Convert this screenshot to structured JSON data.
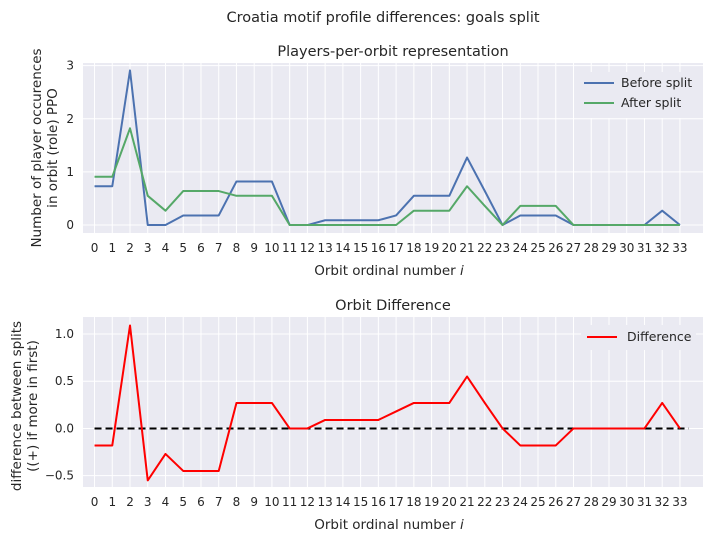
{
  "suptitle": "Croatia motif profile differences: goals split",
  "colors": {
    "before": "#4c72b0",
    "after": "#55a868",
    "difference": "#ff0000",
    "zero_line": "#000000",
    "axes_bg": "#eaeaf2",
    "grid": "#ffffff"
  },
  "chart_data": [
    {
      "type": "line",
      "title": "Players-per-orbit representation",
      "xlabel": "Orbit ordinal number i",
      "ylabel_line1": "Number of player occurences",
      "ylabel_line2": "in orbit (role) PPO",
      "x": [
        0,
        1,
        2,
        3,
        4,
        5,
        6,
        7,
        8,
        9,
        10,
        11,
        12,
        13,
        14,
        15,
        16,
        17,
        18,
        19,
        20,
        21,
        22,
        23,
        24,
        25,
        26,
        27,
        28,
        29,
        30,
        31,
        32,
        33
      ],
      "xticks": [
        "0",
        "1",
        "2",
        "3",
        "4",
        "5",
        "6",
        "7",
        "8",
        "9",
        "10",
        "11",
        "12",
        "13",
        "14",
        "15",
        "16",
        "17",
        "18",
        "19",
        "20",
        "21",
        "22",
        "23",
        "24",
        "25",
        "26",
        "27",
        "28",
        "29",
        "30",
        "31",
        "32",
        "33"
      ],
      "yticks": [
        "0",
        "1",
        "2",
        "3"
      ],
      "ylim": [
        -0.15,
        3.05
      ],
      "xlim": [
        -0.65,
        34.3
      ],
      "grid": true,
      "legend_position": "upper right",
      "series": [
        {
          "name": "Before split",
          "values": [
            0.73,
            0.73,
            2.91,
            0,
            0,
            0.18,
            0.18,
            0.18,
            0.82,
            0.82,
            0.82,
            0,
            0,
            0.09,
            0.09,
            0.09,
            0.09,
            0.18,
            0.55,
            0.55,
            0.55,
            1.27,
            0.64,
            0,
            0.18,
            0.18,
            0.18,
            0,
            0,
            0,
            0,
            0,
            0.27,
            0
          ]
        },
        {
          "name": "After split",
          "values": [
            0.91,
            0.91,
            1.82,
            0.55,
            0.27,
            0.64,
            0.64,
            0.64,
            0.55,
            0.55,
            0.55,
            0,
            0,
            0,
            0,
            0,
            0,
            0,
            0.27,
            0.27,
            0.27,
            0.73,
            0.36,
            0,
            0.36,
            0.36,
            0.36,
            0,
            0,
            0,
            0,
            0,
            0,
            0
          ]
        }
      ]
    },
    {
      "type": "line",
      "title": "Orbit Difference",
      "xlabel": "Orbit ordinal number i",
      "ylabel_line1": "difference between splits",
      "ylabel_line2": "((+) if more in first)",
      "x": [
        0,
        1,
        2,
        3,
        4,
        5,
        6,
        7,
        8,
        9,
        10,
        11,
        12,
        13,
        14,
        15,
        16,
        17,
        18,
        19,
        20,
        21,
        22,
        23,
        24,
        25,
        26,
        27,
        28,
        29,
        30,
        31,
        32,
        33
      ],
      "xticks": [
        "0",
        "1",
        "2",
        "3",
        "4",
        "5",
        "6",
        "7",
        "8",
        "9",
        "10",
        "11",
        "12",
        "13",
        "14",
        "15",
        "16",
        "17",
        "18",
        "19",
        "20",
        "21",
        "22",
        "23",
        "24",
        "25",
        "26",
        "27",
        "28",
        "29",
        "30",
        "31",
        "32",
        "33"
      ],
      "yticks": [
        "−0.5",
        "0.0",
        "0.5",
        "1.0"
      ],
      "ylim": [
        -0.62,
        1.18
      ],
      "xlim": [
        -0.65,
        34.3
      ],
      "grid": true,
      "legend_position": "upper right",
      "zero_line": {
        "from": 0,
        "to": 33.5,
        "style": "dashed"
      },
      "series": [
        {
          "name": "Difference",
          "values": [
            -0.18,
            -0.18,
            1.09,
            -0.55,
            -0.27,
            -0.45,
            -0.45,
            -0.45,
            0.27,
            0.27,
            0.27,
            0,
            0,
            0.09,
            0.09,
            0.09,
            0.09,
            0.18,
            0.27,
            0.27,
            0.27,
            0.55,
            0.27,
            0,
            -0.18,
            -0.18,
            -0.18,
            0,
            0,
            0,
            0,
            0,
            0.27,
            0
          ]
        }
      ]
    }
  ]
}
